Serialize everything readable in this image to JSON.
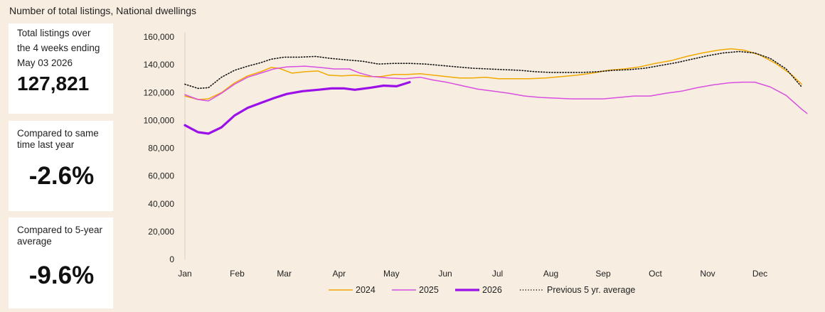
{
  "heading": "Number of total listings, National dwellings",
  "cards": [
    {
      "label": "Total listings over the 4 weeks ending May 03 2026",
      "value": "127,821"
    },
    {
      "label": "Compared to same time last year",
      "value": "-2.6%"
    },
    {
      "label": "Compared to 5-year average",
      "value": "-9.6%"
    }
  ],
  "chart_data": {
    "type": "line",
    "title": "Number of total listings, National dwellings",
    "xlabel": "",
    "ylabel": "",
    "xlim": [
      0,
      12
    ],
    "ylim": [
      0,
      160000
    ],
    "yticks": [
      0,
      20000,
      40000,
      60000,
      80000,
      100000,
      120000,
      140000,
      160000
    ],
    "ytick_labels": [
      "0",
      "20,000",
      "40,000",
      "60,000",
      "80,000",
      "100,000",
      "120,000",
      "140,000",
      "160,000"
    ],
    "xticks": [
      {
        "x": 0.0,
        "label": "Jan"
      },
      {
        "x": 1.0,
        "label": "Feb"
      },
      {
        "x": 1.9,
        "label": "Mar"
      },
      {
        "x": 2.95,
        "label": "Apr"
      },
      {
        "x": 3.95,
        "label": "May"
      },
      {
        "x": 4.98,
        "label": "Jun"
      },
      {
        "x": 5.98,
        "label": "Jul"
      },
      {
        "x": 7.0,
        "label": "Aug"
      },
      {
        "x": 8.0,
        "label": "Sep"
      },
      {
        "x": 9.0,
        "label": "Oct"
      },
      {
        "x": 10.0,
        "label": "Nov"
      },
      {
        "x": 11.0,
        "label": "Dec"
      }
    ],
    "grid": false,
    "legend_position": "bottom",
    "series": [
      {
        "name": "2024",
        "color": "#f2a900",
        "style": "solid",
        "width": 1.5,
        "points": [
          [
            0,
            117500
          ],
          [
            0.25,
            115000
          ],
          [
            0.45,
            115500
          ],
          [
            0.7,
            120000
          ],
          [
            0.95,
            127000
          ],
          [
            1.2,
            132000
          ],
          [
            1.45,
            135000
          ],
          [
            1.65,
            138000
          ],
          [
            1.8,
            137500
          ],
          [
            2.05,
            134000
          ],
          [
            2.3,
            135000
          ],
          [
            2.55,
            135500
          ],
          [
            2.75,
            132500
          ],
          [
            3.0,
            132000
          ],
          [
            3.25,
            132500
          ],
          [
            3.5,
            131500
          ],
          [
            3.75,
            131500
          ],
          [
            4.0,
            133000
          ],
          [
            4.25,
            133000
          ],
          [
            4.5,
            133500
          ],
          [
            4.75,
            132500
          ],
          [
            5.0,
            131500
          ],
          [
            5.25,
            130500
          ],
          [
            5.5,
            130500
          ],
          [
            5.75,
            131000
          ],
          [
            6.0,
            130000
          ],
          [
            6.3,
            130000
          ],
          [
            6.6,
            130000
          ],
          [
            6.9,
            130500
          ],
          [
            7.2,
            131500
          ],
          [
            7.5,
            132500
          ],
          [
            7.8,
            134000
          ],
          [
            8.1,
            136000
          ],
          [
            8.4,
            137000
          ],
          [
            8.7,
            138500
          ],
          [
            9.0,
            141000
          ],
          [
            9.3,
            143000
          ],
          [
            9.6,
            146000
          ],
          [
            9.9,
            148500
          ],
          [
            10.2,
            150500
          ],
          [
            10.45,
            151500
          ],
          [
            10.7,
            150500
          ],
          [
            11.0,
            147000
          ],
          [
            11.3,
            141000
          ],
          [
            11.6,
            133000
          ],
          [
            11.8,
            126000
          ]
        ]
      },
      {
        "name": "2025",
        "color": "#d94fe0",
        "style": "solid",
        "width": 1.5,
        "points": [
          [
            0,
            118500
          ],
          [
            0.25,
            115000
          ],
          [
            0.45,
            114000
          ],
          [
            0.7,
            119500
          ],
          [
            0.95,
            126000
          ],
          [
            1.2,
            131000
          ],
          [
            1.45,
            134000
          ],
          [
            1.7,
            137000
          ],
          [
            1.95,
            138500
          ],
          [
            2.3,
            139000
          ],
          [
            2.6,
            138000
          ],
          [
            2.85,
            137000
          ],
          [
            3.15,
            137000
          ],
          [
            3.35,
            134000
          ],
          [
            3.6,
            131500
          ],
          [
            3.9,
            130500
          ],
          [
            4.2,
            130000
          ],
          [
            4.5,
            131000
          ],
          [
            4.75,
            129000
          ],
          [
            5.0,
            127500
          ],
          [
            5.3,
            125000
          ],
          [
            5.6,
            122500
          ],
          [
            5.9,
            121000
          ],
          [
            6.2,
            119500
          ],
          [
            6.5,
            117500
          ],
          [
            6.8,
            116500
          ],
          [
            7.1,
            116000
          ],
          [
            7.4,
            115500
          ],
          [
            7.7,
            115500
          ],
          [
            8.0,
            115500
          ],
          [
            8.3,
            116500
          ],
          [
            8.6,
            117500
          ],
          [
            8.9,
            117500
          ],
          [
            9.2,
            119500
          ],
          [
            9.5,
            121000
          ],
          [
            9.8,
            123500
          ],
          [
            10.1,
            125500
          ],
          [
            10.4,
            127000
          ],
          [
            10.65,
            127500
          ],
          [
            10.9,
            127500
          ],
          [
            11.2,
            124000
          ],
          [
            11.5,
            118000
          ],
          [
            11.8,
            108000
          ],
          [
            11.9,
            105000
          ]
        ]
      },
      {
        "name": "2026",
        "color": "#9b10e8",
        "style": "solid",
        "width": 3.2,
        "points": [
          [
            0,
            96500
          ],
          [
            0.25,
            91500
          ],
          [
            0.45,
            90500
          ],
          [
            0.7,
            95000
          ],
          [
            0.95,
            103500
          ],
          [
            1.2,
            109000
          ],
          [
            1.45,
            112500
          ],
          [
            1.7,
            116000
          ],
          [
            1.95,
            119000
          ],
          [
            2.25,
            121000
          ],
          [
            2.55,
            122000
          ],
          [
            2.8,
            123000
          ],
          [
            3.05,
            123000
          ],
          [
            3.25,
            122000
          ],
          [
            3.55,
            123500
          ],
          [
            3.8,
            125000
          ],
          [
            4.05,
            124500
          ],
          [
            4.3,
            127500
          ]
        ]
      },
      {
        "name": "Previous 5 yr. average",
        "color": "#111111",
        "style": "dotted",
        "width": 1.6,
        "points": [
          [
            0,
            126000
          ],
          [
            0.25,
            123000
          ],
          [
            0.45,
            123500
          ],
          [
            0.7,
            131000
          ],
          [
            0.95,
            136000
          ],
          [
            1.2,
            139000
          ],
          [
            1.45,
            141500
          ],
          [
            1.65,
            144000
          ],
          [
            1.9,
            145500
          ],
          [
            2.2,
            145500
          ],
          [
            2.5,
            146000
          ],
          [
            2.8,
            144500
          ],
          [
            3.1,
            143500
          ],
          [
            3.4,
            142500
          ],
          [
            3.7,
            140500
          ],
          [
            4.0,
            141000
          ],
          [
            4.3,
            141000
          ],
          [
            4.6,
            140500
          ],
          [
            4.9,
            139500
          ],
          [
            5.2,
            138500
          ],
          [
            5.5,
            137500
          ],
          [
            5.8,
            137000
          ],
          [
            6.1,
            136500
          ],
          [
            6.4,
            136000
          ],
          [
            6.7,
            135000
          ],
          [
            7.0,
            134500
          ],
          [
            7.3,
            134500
          ],
          [
            7.6,
            134500
          ],
          [
            7.9,
            135000
          ],
          [
            8.2,
            136000
          ],
          [
            8.5,
            136500
          ],
          [
            8.8,
            137500
          ],
          [
            9.1,
            139500
          ],
          [
            9.4,
            141500
          ],
          [
            9.7,
            144000
          ],
          [
            10.0,
            146500
          ],
          [
            10.3,
            148500
          ],
          [
            10.6,
            149500
          ],
          [
            10.9,
            148500
          ],
          [
            11.2,
            144500
          ],
          [
            11.5,
            137000
          ],
          [
            11.8,
            124000
          ]
        ]
      }
    ]
  }
}
